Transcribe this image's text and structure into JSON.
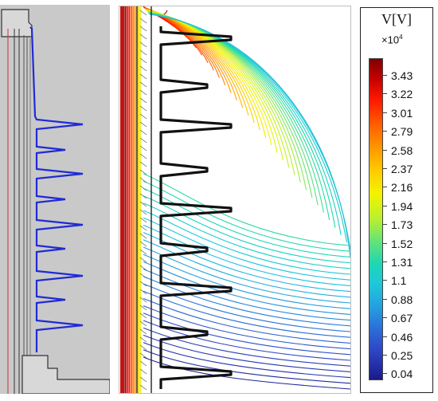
{
  "colorbar": {
    "title": "V[V]",
    "scale_base": "×10",
    "scale_exp": "4",
    "labels": [
      "3.43",
      "3.22",
      "3.01",
      "2.79",
      "2.58",
      "2.37",
      "2.16",
      "1.94",
      "1.73",
      "1.52",
      "1.31",
      "1.1",
      "0.88",
      "0.67",
      "0.46",
      "0.25",
      "0.04"
    ]
  },
  "colors": {
    "insulator_outline": "#1f2bd6",
    "geometry_gray": "#c9c9c9",
    "shed_outline": "#111111"
  }
}
